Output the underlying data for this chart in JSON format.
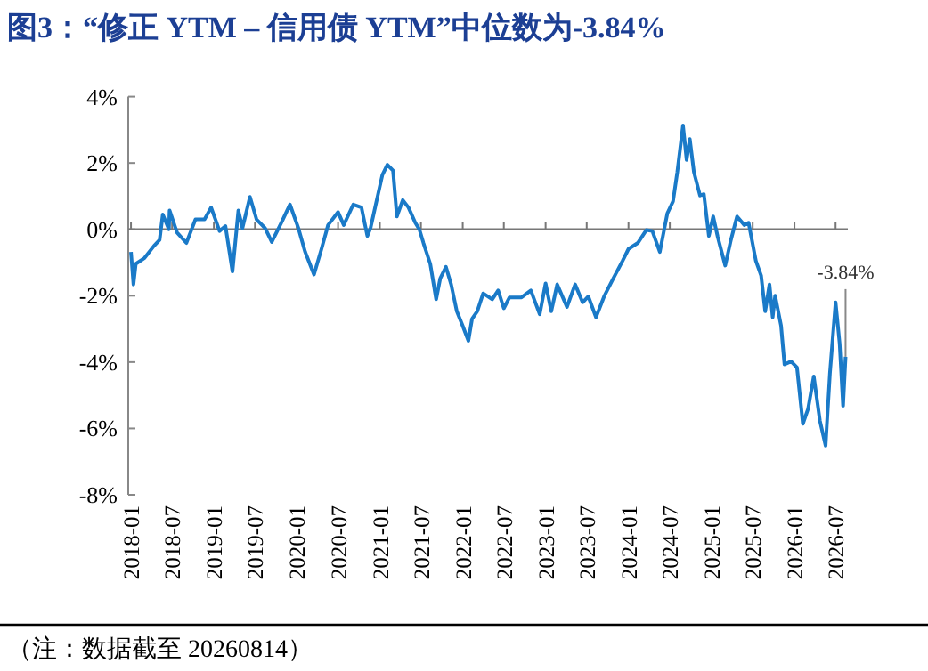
{
  "chart_data": {
    "type": "line",
    "title": "图3：“修正 YTM – 信用债 YTM”中位数为-3.84%",
    "annotations": [
      {
        "text": "-3.84%",
        "x": "2026-08-14",
        "y": -3.84
      },
      "（注：数据截至 20260814）"
    ],
    "xlim": [
      "2017-12-20",
      "2026-08-24"
    ],
    "xticks": [
      "2018-01",
      "2018-07",
      "2019-01",
      "2019-07",
      "2020-01",
      "2020-07",
      "2021-01",
      "2021-07",
      "2022-01",
      "2022-07",
      "2023-01",
      "2023-07",
      "2024-01",
      "2024-07",
      "2025-01",
      "2025-07",
      "2026-01",
      "2026-07"
    ],
    "ylim": [
      -8,
      4
    ],
    "yticks": [
      {
        "value": -8,
        "label": "-8%"
      },
      {
        "value": -6,
        "label": "-6%"
      },
      {
        "value": -4,
        "label": "-4%"
      },
      {
        "value": -2,
        "label": "-2%"
      },
      {
        "value": 0,
        "label": "0%"
      },
      {
        "value": 2,
        "label": "2%"
      },
      {
        "value": 4,
        "label": "4%"
      }
    ],
    "x": [
      "2018-01-01",
      "2018-01-12",
      "2018-01-22",
      "2018-03-02",
      "2018-04-12",
      "2018-05-07",
      "2018-05-21",
      "2018-06-17",
      "2018-06-20",
      "2018-07-23",
      "2018-09-02",
      "2018-10-12",
      "2018-11-21",
      "2018-12-20",
      "2019-01-26",
      "2019-02-21",
      "2019-03-24",
      "2019-04-19",
      "2019-05-07",
      "2019-06-09",
      "2019-07-08",
      "2019-08-14",
      "2019-09-13",
      "2019-10-26",
      "2019-12-02",
      "2020-01-08",
      "2020-02-07",
      "2020-03-17",
      "2020-04-19",
      "2020-05-18",
      "2020-07-01",
      "2020-07-26",
      "2020-09-06",
      "2020-10-12",
      "2020-11-07",
      "2020-11-21",
      "2020-12-17",
      "2021-01-12",
      "2021-02-03",
      "2021-02-28",
      "2021-03-17",
      "2021-04-12",
      "2021-05-07",
      "2021-06-06",
      "2021-06-24",
      "2021-07-12",
      "2021-08-11",
      "2021-09-06",
      "2021-09-24",
      "2021-10-19",
      "2021-11-11",
      "2021-12-06",
      "2022-01-01",
      "2022-01-26",
      "2022-02-11",
      "2022-03-06",
      "2022-04-01",
      "2022-05-11",
      "2022-06-06",
      "2022-07-01",
      "2022-07-26",
      "2022-09-17",
      "2022-10-28",
      "2022-12-06",
      "2023-01-01",
      "2023-01-26",
      "2023-02-21",
      "2023-04-05",
      "2023-05-11",
      "2023-06-13",
      "2023-07-08",
      "2023-08-11",
      "2023-09-17",
      "2023-10-26",
      "2023-12-06",
      "2024-01-01",
      "2024-02-11",
      "2024-03-20",
      "2024-04-15",
      "2024-05-18",
      "2024-06-20",
      "2024-07-15",
      "2024-08-03",
      "2024-08-28",
      "2024-09-13",
      "2024-09-27",
      "2024-10-15",
      "2024-11-11",
      "2024-11-28",
      "2024-12-20",
      "2025-01-08",
      "2025-01-28",
      "2025-03-02",
      "2025-03-27",
      "2025-04-23",
      "2025-05-25",
      "2025-06-13",
      "2025-07-15",
      "2025-08-07",
      "2025-08-25",
      "2025-09-13",
      "2025-09-27",
      "2025-10-08",
      "2025-11-03",
      "2025-11-18",
      "2025-12-17",
      "2026-01-12",
      "2026-02-07",
      "2026-03-02",
      "2026-03-27",
      "2026-04-23",
      "2026-05-18",
      "2026-06-06",
      "2026-07-01",
      "2026-07-19",
      "2026-08-03",
      "2026-08-14"
    ],
    "series": [
      {
        "color": "#1a7ac8",
        "values": [
          -0.68,
          -1.66,
          -1.04,
          -0.86,
          -0.5,
          -0.32,
          0.45,
          0.0,
          0.57,
          -0.1,
          -0.41,
          0.3,
          0.3,
          0.66,
          -0.05,
          0.1,
          -1.27,
          0.57,
          0.04,
          0.98,
          0.3,
          0.04,
          -0.38,
          0.21,
          0.75,
          0.04,
          -0.68,
          -1.36,
          -0.59,
          0.13,
          0.52,
          0.13,
          0.75,
          0.66,
          -0.2,
          0.04,
          0.84,
          1.64,
          1.95,
          1.77,
          0.39,
          0.88,
          0.66,
          0.2,
          0.0,
          -0.41,
          -1.04,
          -2.11,
          -1.48,
          -1.13,
          -1.66,
          -2.47,
          -2.91,
          -3.36,
          -2.7,
          -2.47,
          -1.93,
          -2.11,
          -1.84,
          -2.38,
          -2.05,
          -2.05,
          -1.84,
          -2.56,
          -1.63,
          -2.47,
          -1.66,
          -2.34,
          -1.66,
          -2.2,
          -2.02,
          -2.65,
          -2.0,
          -1.48,
          -0.95,
          -0.59,
          -0.41,
          -0.02,
          -0.05,
          -0.68,
          0.48,
          0.84,
          1.73,
          3.13,
          2.09,
          2.72,
          1.73,
          1.02,
          1.06,
          -0.2,
          0.39,
          -0.23,
          -1.09,
          -0.32,
          0.39,
          0.13,
          0.2,
          -0.95,
          -1.39,
          -2.47,
          -1.66,
          -2.65,
          -2.0,
          -2.91,
          -4.07,
          -3.98,
          -4.16,
          -5.86,
          -5.41,
          -4.43,
          -5.77,
          -6.52,
          -4.34,
          -2.2,
          -3.45,
          -5.32,
          -3.84
        ]
      }
    ]
  }
}
